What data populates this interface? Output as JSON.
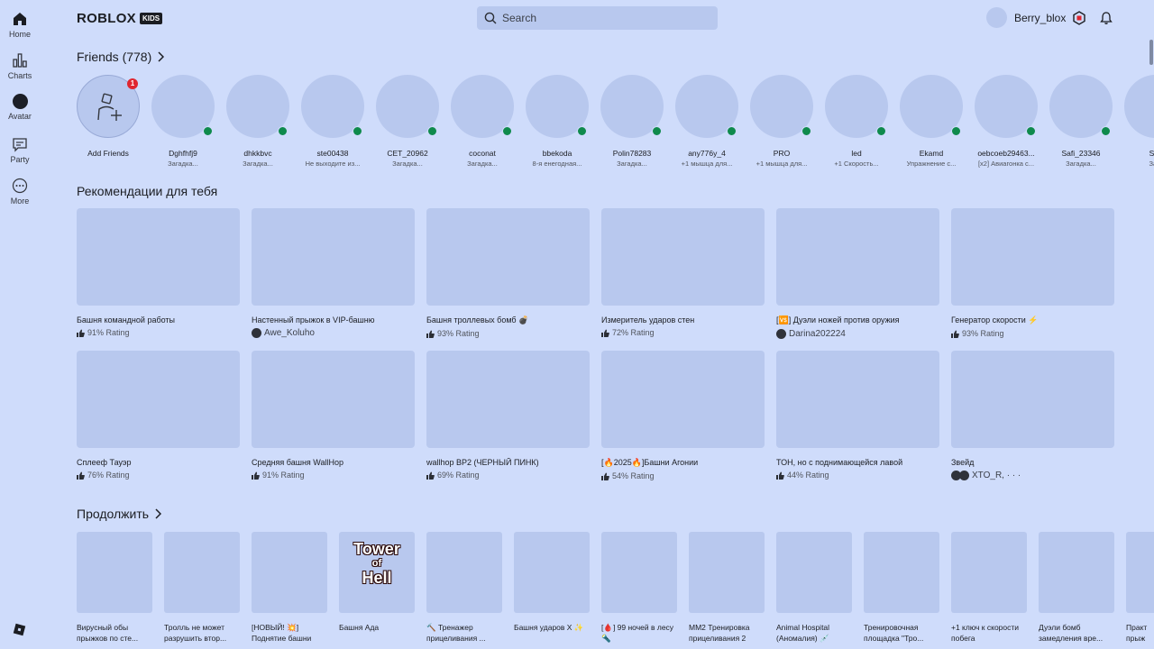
{
  "nav": [
    {
      "label": "Home",
      "icon": "home-icon"
    },
    {
      "label": "Charts",
      "icon": "charts-icon"
    },
    {
      "label": "Avatar",
      "icon": "avatar-icon"
    },
    {
      "label": "Party",
      "icon": "party-icon"
    },
    {
      "label": "More",
      "icon": "more-icon"
    }
  ],
  "brand": {
    "word": "ROBLOX",
    "kids": "KIDS"
  },
  "search": {
    "placeholder": "Search"
  },
  "user": {
    "name": "Berry_blox"
  },
  "colors": {
    "background": "#cfdcfb",
    "placeholder": "#b8c8ee",
    "online": "#0f8a4c",
    "badge": "#e0262f"
  },
  "friends": {
    "title": "Friends (778)",
    "add": {
      "label": "Add Friends",
      "badge": "1"
    },
    "list": [
      {
        "name": "Dghfhfj9",
        "status": "Загадка..."
      },
      {
        "name": "dhkkbvc",
        "status": "Загадка..."
      },
      {
        "name": "ste00438",
        "status": "Не выходите из..."
      },
      {
        "name": "CET_20962",
        "status": "Загадка..."
      },
      {
        "name": "coconat",
        "status": "Загадка..."
      },
      {
        "name": "bbekoda",
        "status": "8-я енегодная..."
      },
      {
        "name": "Polin78283",
        "status": "Загадка..."
      },
      {
        "name": "any776y_4",
        "status": "+1 мышца для..."
      },
      {
        "name": "PRO",
        "status": "+1 мышца для..."
      },
      {
        "name": "led",
        "status": "+1 Скорость..."
      },
      {
        "name": "Ekamd",
        "status": "Упражнение с..."
      },
      {
        "name": "oebcoeb29463...",
        "status": "[x2] Авиагонка с..."
      },
      {
        "name": "Safi_23346",
        "status": "Загадка..."
      },
      {
        "name": "Sak",
        "status": "Загс"
      }
    ]
  },
  "recommended": {
    "title": "Рекомендации для тебя",
    "row1": [
      {
        "name": "Башня командной работы",
        "sub": "91% Rating",
        "type": "rating"
      },
      {
        "name": "Настенный прыжок в VIP-башню",
        "sub": "Awe_Koluho",
        "type": "creator"
      },
      {
        "name": "Башня троллевых бомб 💣",
        "sub": "93% Rating",
        "type": "rating"
      },
      {
        "name": "Измеритель ударов стен",
        "sub": "72% Rating",
        "type": "rating"
      },
      {
        "name": "[🆚] Дуэли ножей против оружия",
        "sub": "Darina202224",
        "type": "creator"
      },
      {
        "name": "Генератор скорости ⚡",
        "sub": "93% Rating",
        "type": "rating"
      }
    ],
    "row2": [
      {
        "name": "Сплееф Тауэр",
        "sub": "76% Rating",
        "type": "rating"
      },
      {
        "name": "Средняя башня WallHop",
        "sub": "91% Rating",
        "type": "rating"
      },
      {
        "name": "wallhop BP2 (ЧЕРНЫЙ ПИНК)",
        "sub": "69% Rating",
        "type": "rating"
      },
      {
        "name": "[🔥2025🔥]Башни Агонии",
        "sub": "54% Rating",
        "type": "rating"
      },
      {
        "name": "ТОН, но с поднимающейся лавой",
        "sub": "44% Rating",
        "type": "rating"
      },
      {
        "name": "Звейд",
        "sub": "XTO_R, · · ·",
        "type": "creator2"
      }
    ]
  },
  "continue": {
    "title": "Продолжить",
    "items": [
      {
        "name": "Вирусный обы прыжков по сте..."
      },
      {
        "name": "Тролль не может разрушить втор..."
      },
      {
        "name": "[НОВЫЙ! 💥] Поднятие башни"
      },
      {
        "name": "Башня Ада",
        "art": {
          "line1": "Tower",
          "line2": "of",
          "line3": "Hell"
        }
      },
      {
        "name": "🔨 Тренажер прицеливания ..."
      },
      {
        "name": "Башня ударов X ✨"
      },
      {
        "name": "[🩸] 99 ночей в лесу 🔦"
      },
      {
        "name": "MM2 Тренировка прицеливания 2"
      },
      {
        "name": "Animal Hospital (Аномалия) 💉"
      },
      {
        "name": "Тренировочная площадка \"Тро..."
      },
      {
        "name": "+1 ключ к скорости побега"
      },
      {
        "name": "Дуэли бомб замедления вре..."
      },
      {
        "name": "Практ прыж"
      }
    ]
  }
}
